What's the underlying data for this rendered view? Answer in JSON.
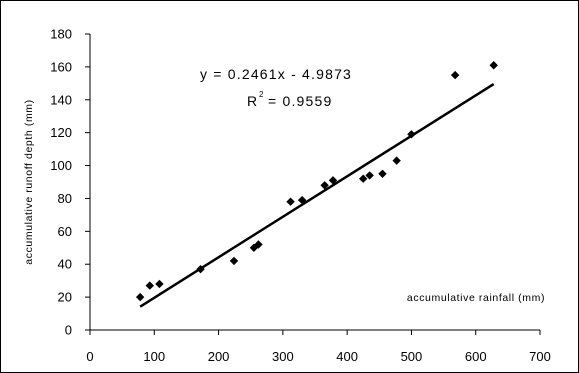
{
  "chart_data": {
    "type": "scatter",
    "xlabel": "accumulative rainfall (mm)",
    "ylabel": "accumulative runoff depth (mm)",
    "xlim": [
      0,
      700
    ],
    "ylim": [
      0,
      180
    ],
    "xticks": [
      "0",
      "100",
      "200",
      "300",
      "400",
      "500",
      "600",
      "700"
    ],
    "yticks": [
      "0",
      "20",
      "40",
      "60",
      "80",
      "100",
      "120",
      "140",
      "160",
      "180"
    ],
    "grid": false,
    "legend": "none",
    "points": [
      {
        "x": 78,
        "y": 20
      },
      {
        "x": 93,
        "y": 27
      },
      {
        "x": 108,
        "y": 28
      },
      {
        "x": 172,
        "y": 37
      },
      {
        "x": 224,
        "y": 42
      },
      {
        "x": 255,
        "y": 50
      },
      {
        "x": 262,
        "y": 52
      },
      {
        "x": 312,
        "y": 78
      },
      {
        "x": 330,
        "y": 79
      },
      {
        "x": 365,
        "y": 88
      },
      {
        "x": 378,
        "y": 91
      },
      {
        "x": 425,
        "y": 92
      },
      {
        "x": 435,
        "y": 94
      },
      {
        "x": 455,
        "y": 95
      },
      {
        "x": 477,
        "y": 103
      },
      {
        "x": 500,
        "y": 119
      },
      {
        "x": 568,
        "y": 155
      },
      {
        "x": 628,
        "y": 161
      }
    ],
    "trendline": {
      "slope": 0.2461,
      "intercept": -4.9873,
      "x_range": [
        78,
        628
      ],
      "equation": "y = 0.2461x - 4.9873",
      "r2_prefix": "R",
      "r2_exponent": "2",
      "r2_value": "= 0.9559"
    },
    "marker_color": "#000000",
    "line_color": "#000000"
  }
}
